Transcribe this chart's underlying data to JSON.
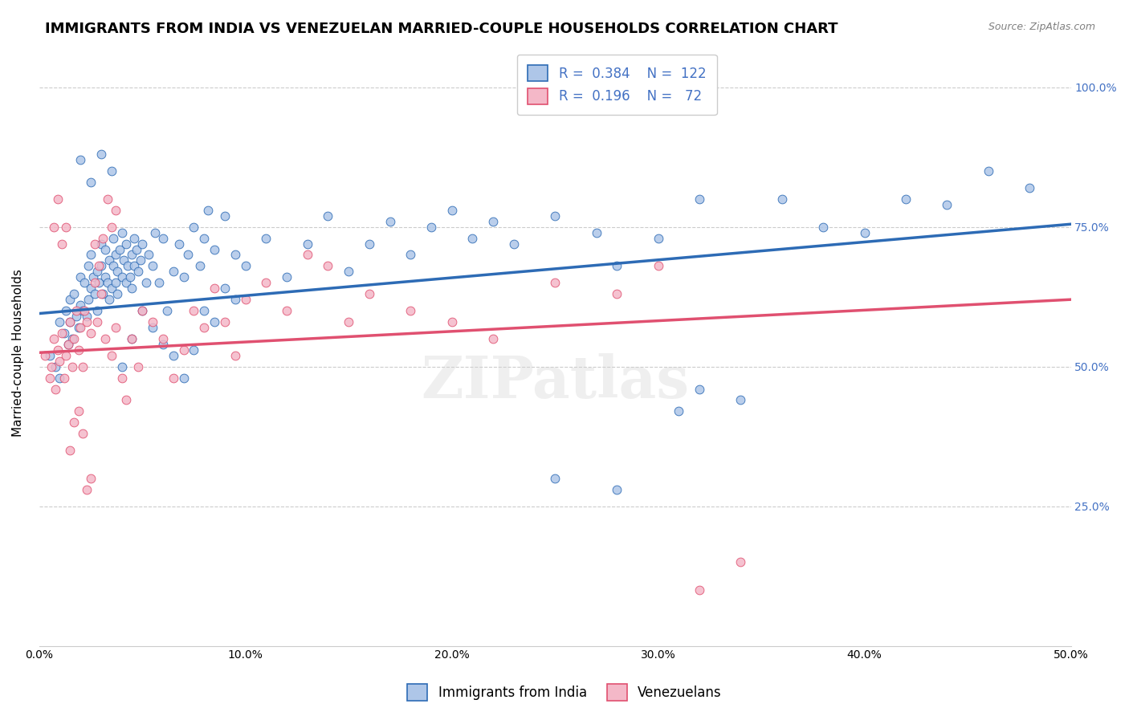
{
  "title": "IMMIGRANTS FROM INDIA VS VENEZUELAN MARRIED-COUPLE HOUSEHOLDS CORRELATION CHART",
  "source": "Source: ZipAtlas.com",
  "ylabel": "Married-couple Households",
  "xlim": [
    0.0,
    0.5
  ],
  "ylim": [
    0.0,
    1.05
  ],
  "xtick_labels": [
    "0.0%",
    "10.0%",
    "20.0%",
    "30.0%",
    "40.0%",
    "50.0%"
  ],
  "xtick_vals": [
    0.0,
    0.1,
    0.2,
    0.3,
    0.4,
    0.5
  ],
  "ytick_labels": [
    "25.0%",
    "50.0%",
    "75.0%",
    "100.0%"
  ],
  "ytick_vals": [
    0.25,
    0.5,
    0.75,
    1.0
  ],
  "blue_R": "0.384",
  "blue_N": "122",
  "pink_R": "0.196",
  "pink_N": "72",
  "blue_color": "#aec6e8",
  "blue_line_color": "#2d6bb5",
  "pink_color": "#f4b8c8",
  "pink_line_color": "#e05070",
  "watermark": "ZIPatlas",
  "title_fontsize": 13,
  "axis_label_fontsize": 11,
  "tick_fontsize": 10,
  "blue_scatter_x": [
    0.005,
    0.008,
    0.01,
    0.01,
    0.012,
    0.013,
    0.014,
    0.015,
    0.015,
    0.016,
    0.017,
    0.018,
    0.019,
    0.02,
    0.02,
    0.021,
    0.022,
    0.023,
    0.024,
    0.024,
    0.025,
    0.025,
    0.026,
    0.027,
    0.028,
    0.028,
    0.029,
    0.03,
    0.03,
    0.031,
    0.032,
    0.032,
    0.033,
    0.034,
    0.034,
    0.035,
    0.036,
    0.036,
    0.037,
    0.037,
    0.038,
    0.038,
    0.039,
    0.04,
    0.04,
    0.041,
    0.042,
    0.042,
    0.043,
    0.044,
    0.045,
    0.045,
    0.046,
    0.046,
    0.047,
    0.048,
    0.049,
    0.05,
    0.052,
    0.053,
    0.055,
    0.056,
    0.058,
    0.06,
    0.062,
    0.065,
    0.068,
    0.07,
    0.072,
    0.075,
    0.078,
    0.08,
    0.082,
    0.085,
    0.09,
    0.095,
    0.1,
    0.11,
    0.12,
    0.13,
    0.14,
    0.15,
    0.16,
    0.17,
    0.18,
    0.19,
    0.2,
    0.21,
    0.22,
    0.23,
    0.25,
    0.27,
    0.28,
    0.3,
    0.31,
    0.32,
    0.34,
    0.36,
    0.38,
    0.4,
    0.42,
    0.44,
    0.46,
    0.48,
    0.02,
    0.025,
    0.03,
    0.035,
    0.04,
    0.045,
    0.05,
    0.055,
    0.06,
    0.065,
    0.07,
    0.075,
    0.08,
    0.085,
    0.09,
    0.095,
    0.25,
    0.28,
    0.32
  ],
  "blue_scatter_y": [
    0.52,
    0.5,
    0.58,
    0.48,
    0.56,
    0.6,
    0.54,
    0.62,
    0.58,
    0.55,
    0.63,
    0.59,
    0.57,
    0.61,
    0.66,
    0.6,
    0.65,
    0.59,
    0.62,
    0.68,
    0.64,
    0.7,
    0.66,
    0.63,
    0.67,
    0.6,
    0.65,
    0.68,
    0.72,
    0.63,
    0.66,
    0.71,
    0.65,
    0.69,
    0.62,
    0.64,
    0.68,
    0.73,
    0.7,
    0.65,
    0.63,
    0.67,
    0.71,
    0.66,
    0.74,
    0.69,
    0.72,
    0.65,
    0.68,
    0.66,
    0.7,
    0.64,
    0.68,
    0.73,
    0.71,
    0.67,
    0.69,
    0.72,
    0.65,
    0.7,
    0.68,
    0.74,
    0.65,
    0.73,
    0.6,
    0.67,
    0.72,
    0.66,
    0.7,
    0.75,
    0.68,
    0.73,
    0.78,
    0.71,
    0.77,
    0.7,
    0.68,
    0.73,
    0.66,
    0.72,
    0.77,
    0.67,
    0.72,
    0.76,
    0.7,
    0.75,
    0.78,
    0.73,
    0.76,
    0.72,
    0.77,
    0.74,
    0.68,
    0.73,
    0.42,
    0.46,
    0.44,
    0.8,
    0.75,
    0.74,
    0.8,
    0.79,
    0.85,
    0.82,
    0.87,
    0.83,
    0.88,
    0.85,
    0.5,
    0.55,
    0.6,
    0.57,
    0.54,
    0.52,
    0.48,
    0.53,
    0.6,
    0.58,
    0.64,
    0.62,
    0.3,
    0.28,
    0.8
  ],
  "pink_scatter_x": [
    0.003,
    0.005,
    0.006,
    0.007,
    0.008,
    0.009,
    0.01,
    0.011,
    0.012,
    0.013,
    0.014,
    0.015,
    0.016,
    0.017,
    0.018,
    0.019,
    0.02,
    0.021,
    0.022,
    0.023,
    0.025,
    0.027,
    0.028,
    0.03,
    0.032,
    0.035,
    0.037,
    0.04,
    0.042,
    0.045,
    0.048,
    0.05,
    0.055,
    0.06,
    0.065,
    0.07,
    0.075,
    0.08,
    0.085,
    0.09,
    0.095,
    0.1,
    0.11,
    0.12,
    0.13,
    0.14,
    0.15,
    0.16,
    0.18,
    0.2,
    0.22,
    0.25,
    0.28,
    0.3,
    0.32,
    0.34,
    0.007,
    0.009,
    0.011,
    0.013,
    0.015,
    0.017,
    0.019,
    0.021,
    0.023,
    0.025,
    0.027,
    0.029,
    0.031,
    0.033,
    0.035,
    0.037
  ],
  "pink_scatter_y": [
    0.52,
    0.48,
    0.5,
    0.55,
    0.46,
    0.53,
    0.51,
    0.56,
    0.48,
    0.52,
    0.54,
    0.58,
    0.5,
    0.55,
    0.6,
    0.53,
    0.57,
    0.5,
    0.6,
    0.58,
    0.56,
    0.65,
    0.58,
    0.63,
    0.55,
    0.52,
    0.57,
    0.48,
    0.44,
    0.55,
    0.5,
    0.6,
    0.58,
    0.55,
    0.48,
    0.53,
    0.6,
    0.57,
    0.64,
    0.58,
    0.52,
    0.62,
    0.65,
    0.6,
    0.7,
    0.68,
    0.58,
    0.63,
    0.6,
    0.58,
    0.55,
    0.65,
    0.63,
    0.68,
    0.1,
    0.15,
    0.75,
    0.8,
    0.72,
    0.75,
    0.35,
    0.4,
    0.42,
    0.38,
    0.28,
    0.3,
    0.72,
    0.68,
    0.73,
    0.8,
    0.75,
    0.78
  ],
  "blue_trendline_x": [
    0.0,
    0.5
  ],
  "blue_trendline_y": [
    0.595,
    0.755
  ],
  "pink_trendline_x": [
    0.0,
    0.5
  ],
  "pink_trendline_y": [
    0.525,
    0.62
  ],
  "background_color": "#ffffff",
  "grid_color": "#cccccc",
  "right_tick_color": "#4472c4",
  "legend_fontsize": 12,
  "marker_size": 60
}
